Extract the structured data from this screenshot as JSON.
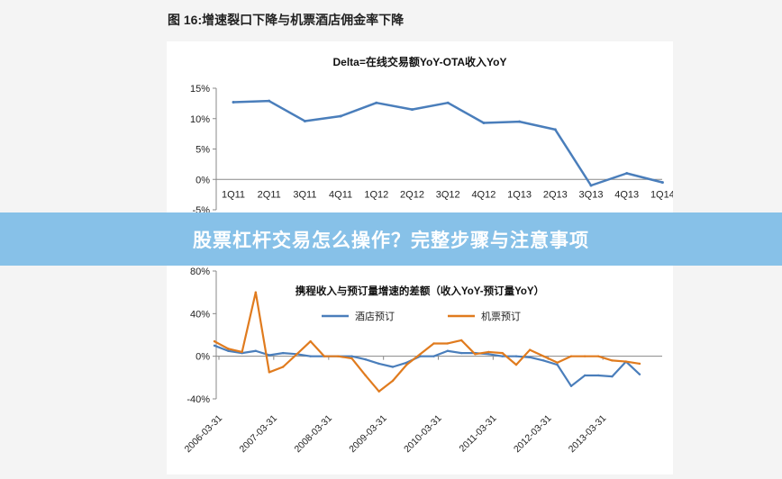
{
  "figure_title": "图 16:增速裂口下降与机票酒店佣金率下降",
  "banner_title": "股票杠杆交易怎么操作？完整步骤与注意事项",
  "colors": {
    "blue": "#4a7ebb",
    "orange": "#e07b1e",
    "banner": "#78b9e6"
  },
  "chart_data": [
    {
      "type": "line",
      "title": "Delta=在线交易额YoY-OTA收入YoY",
      "categories": [
        "1Q11",
        "2Q11",
        "3Q11",
        "4Q11",
        "1Q12",
        "2Q12",
        "3Q12",
        "4Q12",
        "1Q13",
        "2Q13",
        "3Q13",
        "4Q13",
        "1Q14"
      ],
      "series": [
        {
          "name": "",
          "values": [
            12.7,
            12.9,
            9.6,
            10.4,
            12.6,
            11.5,
            12.6,
            9.3,
            9.5,
            8.2,
            -1.0,
            1.0,
            -0.5
          ]
        }
      ],
      "y_ticks": [
        "15%",
        "10%",
        "5%",
        "0%",
        "-5%"
      ],
      "ylim": [
        -5,
        15
      ],
      "legend": "none",
      "grid": false
    },
    {
      "type": "line",
      "title": "携程收入与预订量增速的差额（收入YoY-预订量YoY）",
      "x_ticks": [
        "2006-03-31",
        "2007-03-31",
        "2008-03-31",
        "2009-03-31",
        "2010-03-31",
        "2011-03-31",
        "2012-03-31",
        "2013-03-31"
      ],
      "x_start": "2006-03-31",
      "x_end": "2014-03-31",
      "series": [
        {
          "name": "酒店预订",
          "values": [
            10,
            5,
            3,
            5,
            1,
            3,
            2,
            0,
            0,
            0,
            0,
            -3,
            -7,
            -10,
            -6,
            0,
            0,
            5,
            3,
            3,
            2,
            0,
            0,
            -1,
            -4,
            -8,
            -28,
            -18,
            -18,
            -19,
            -5,
            -17
          ]
        },
        {
          "name": "机票预订",
          "values": [
            14,
            7,
            4,
            60,
            -15,
            -10,
            2,
            14,
            0,
            0,
            -2,
            -18,
            -33,
            -23,
            -8,
            2,
            12,
            12,
            15,
            2,
            4,
            3,
            -8,
            6,
            0,
            -6,
            0,
            0,
            0,
            -4,
            -5,
            -7
          ]
        }
      ],
      "y_ticks": [
        "80%",
        "40%",
        "0%",
        "-40%"
      ],
      "ylim": [
        -40,
        80
      ],
      "legend": "top",
      "grid": false
    }
  ]
}
